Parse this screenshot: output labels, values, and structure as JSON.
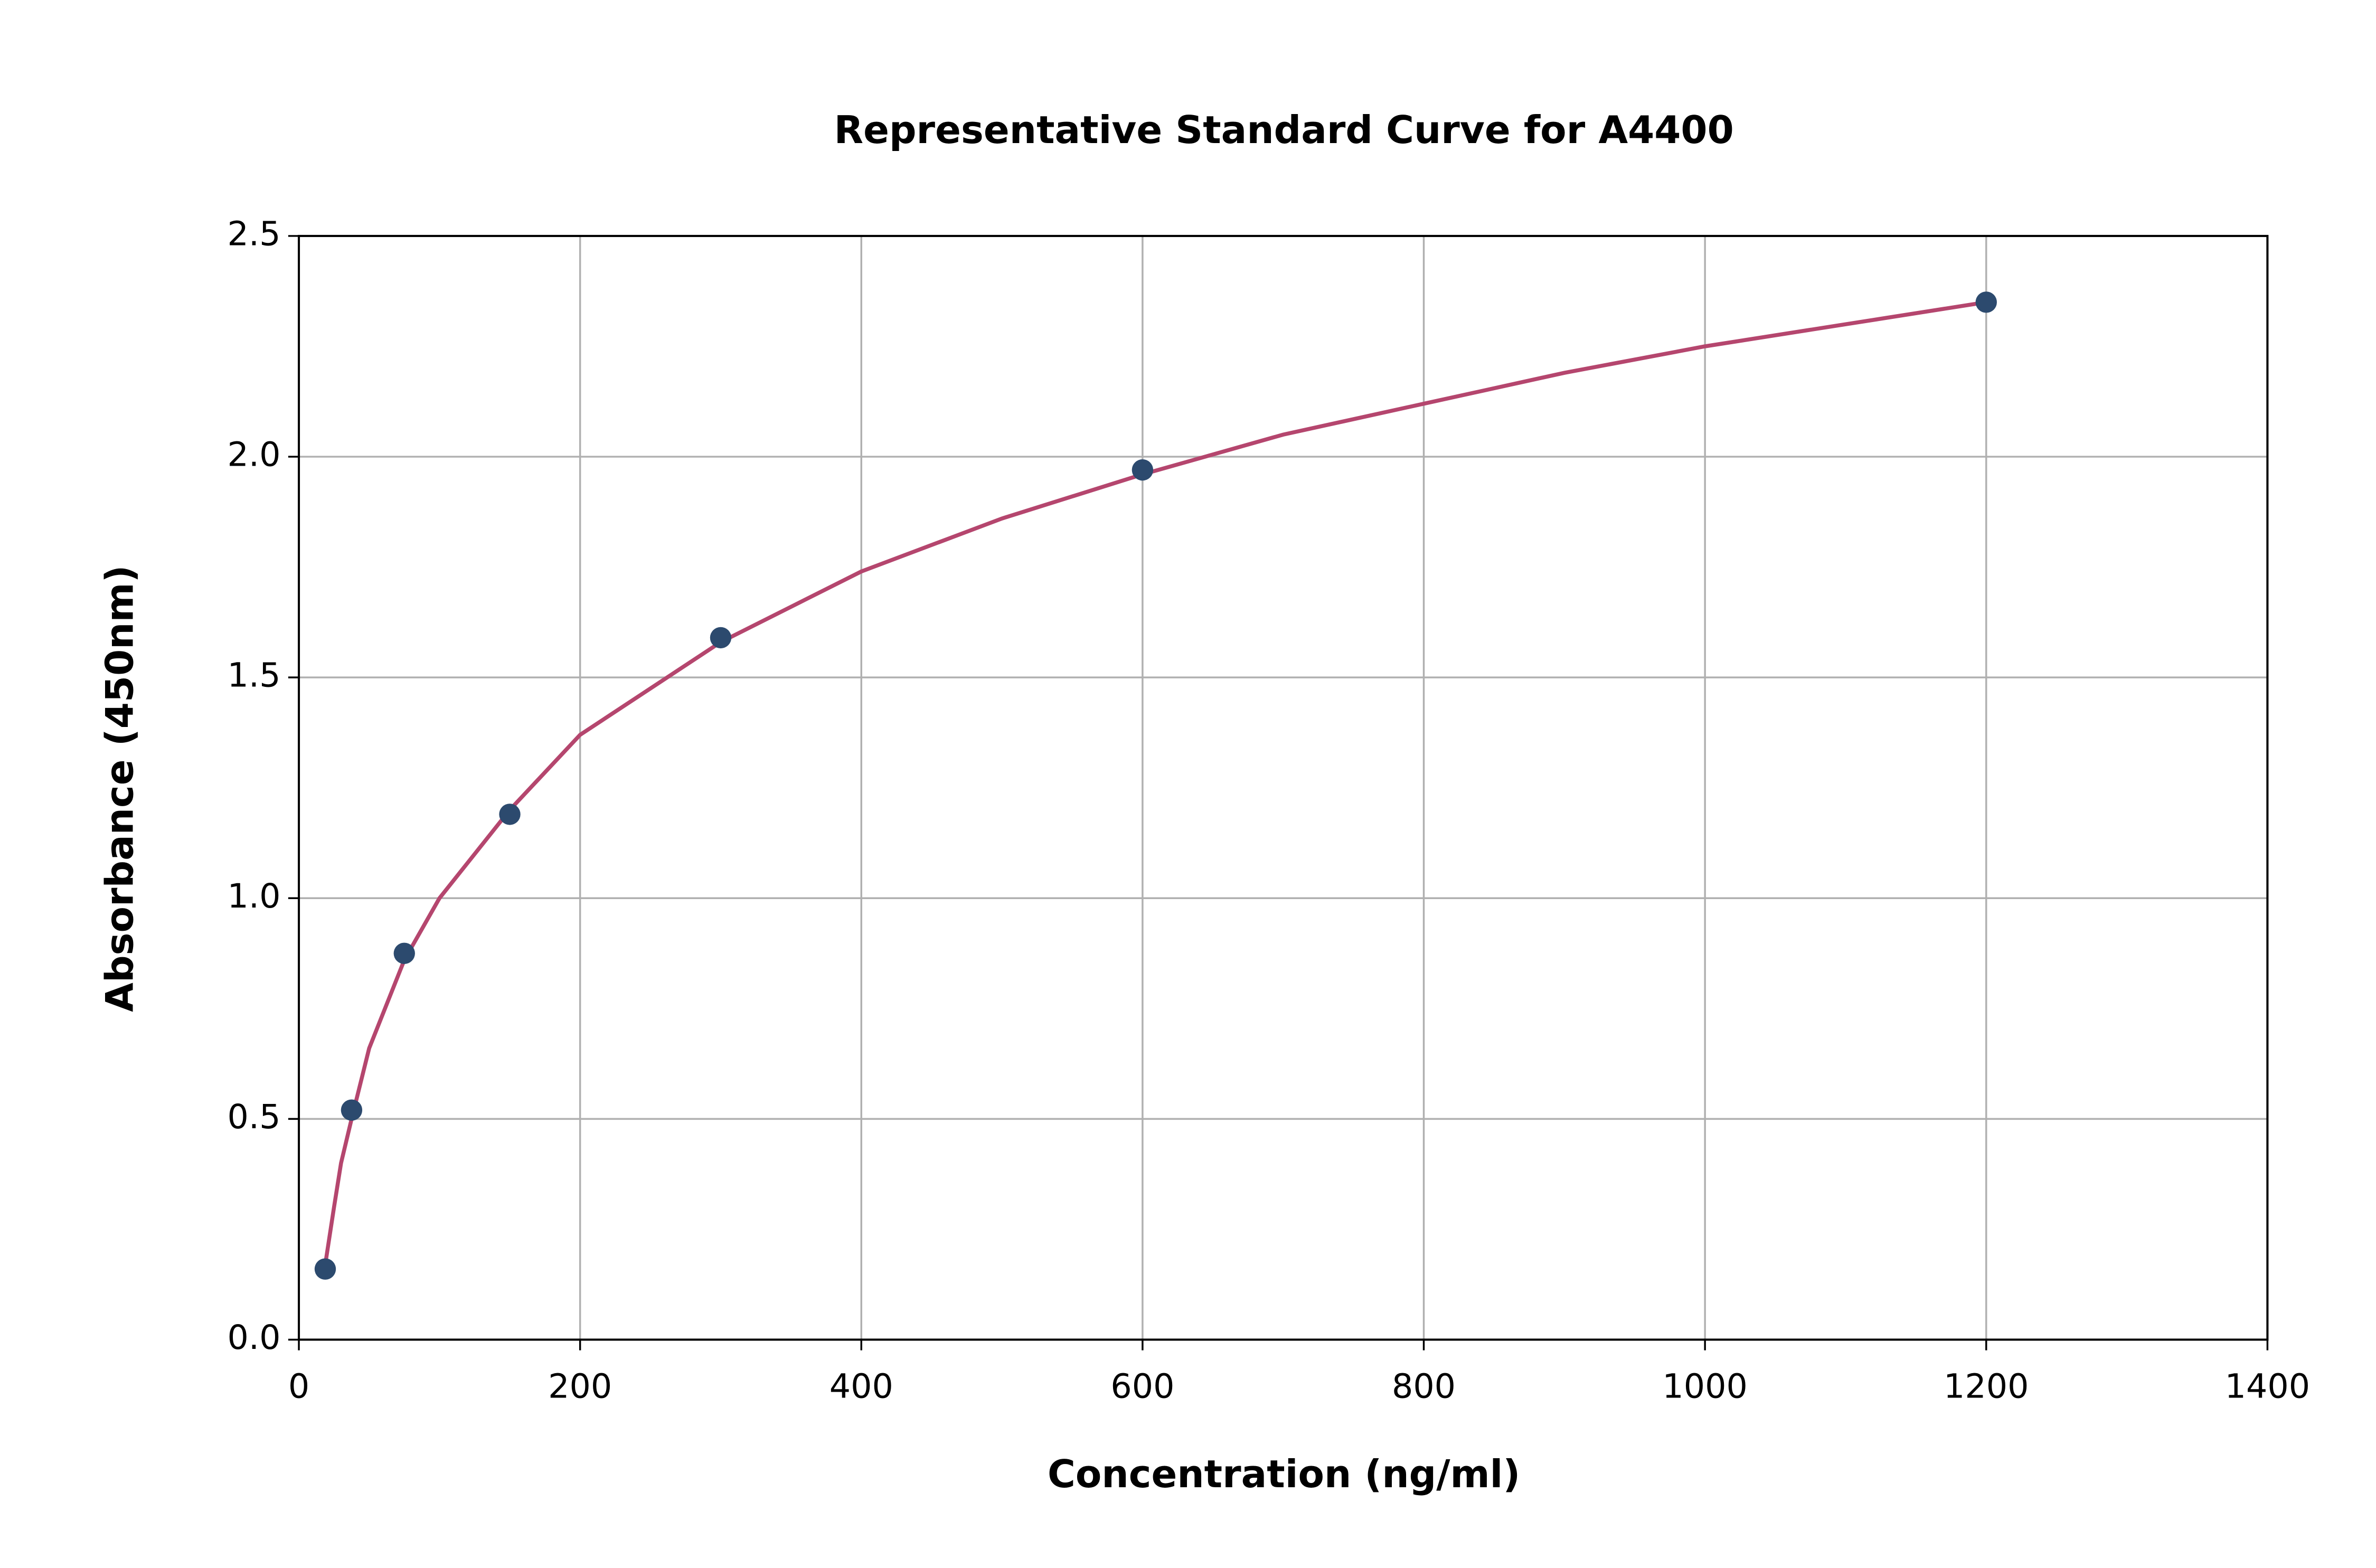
{
  "chart_data": {
    "type": "scatter",
    "title": "Representative Standard Curve for A4400",
    "x_label": "Concentration (ng/ml)",
    "y_label": "Absorbance (450nm)",
    "x": [
      18.75,
      37.5,
      75,
      150,
      300,
      600,
      1200
    ],
    "values": [
      0.16,
      0.52,
      0.875,
      1.19,
      1.59,
      1.97,
      2.35
    ],
    "color": "#2c4a6e",
    "fit": {
      "color": "#b5466e",
      "x": [
        18.75,
        25,
        30,
        37.5,
        50,
        75,
        100,
        150,
        200,
        300,
        400,
        500,
        600,
        700,
        800,
        900,
        1000,
        1100,
        1200
      ],
      "values": [
        0.17,
        0.3,
        0.4,
        0.5,
        0.66,
        0.86,
        1.0,
        1.2,
        1.37,
        1.58,
        1.74,
        1.86,
        1.96,
        2.05,
        2.12,
        2.19,
        2.25,
        2.3,
        2.35
      ]
    },
    "xlim": [
      0,
      1400
    ],
    "xticks": [
      0,
      200,
      400,
      600,
      800,
      1000,
      1200,
      1400
    ],
    "ylim": [
      0,
      2.5
    ],
    "yticks": [
      {
        "value": 0,
        "label": "0.0"
      },
      0.5,
      {
        "value": 1,
        "label": "1.0"
      },
      1.5,
      {
        "value": 2,
        "label": "2.0"
      },
      2.5
    ],
    "grid": true
  }
}
